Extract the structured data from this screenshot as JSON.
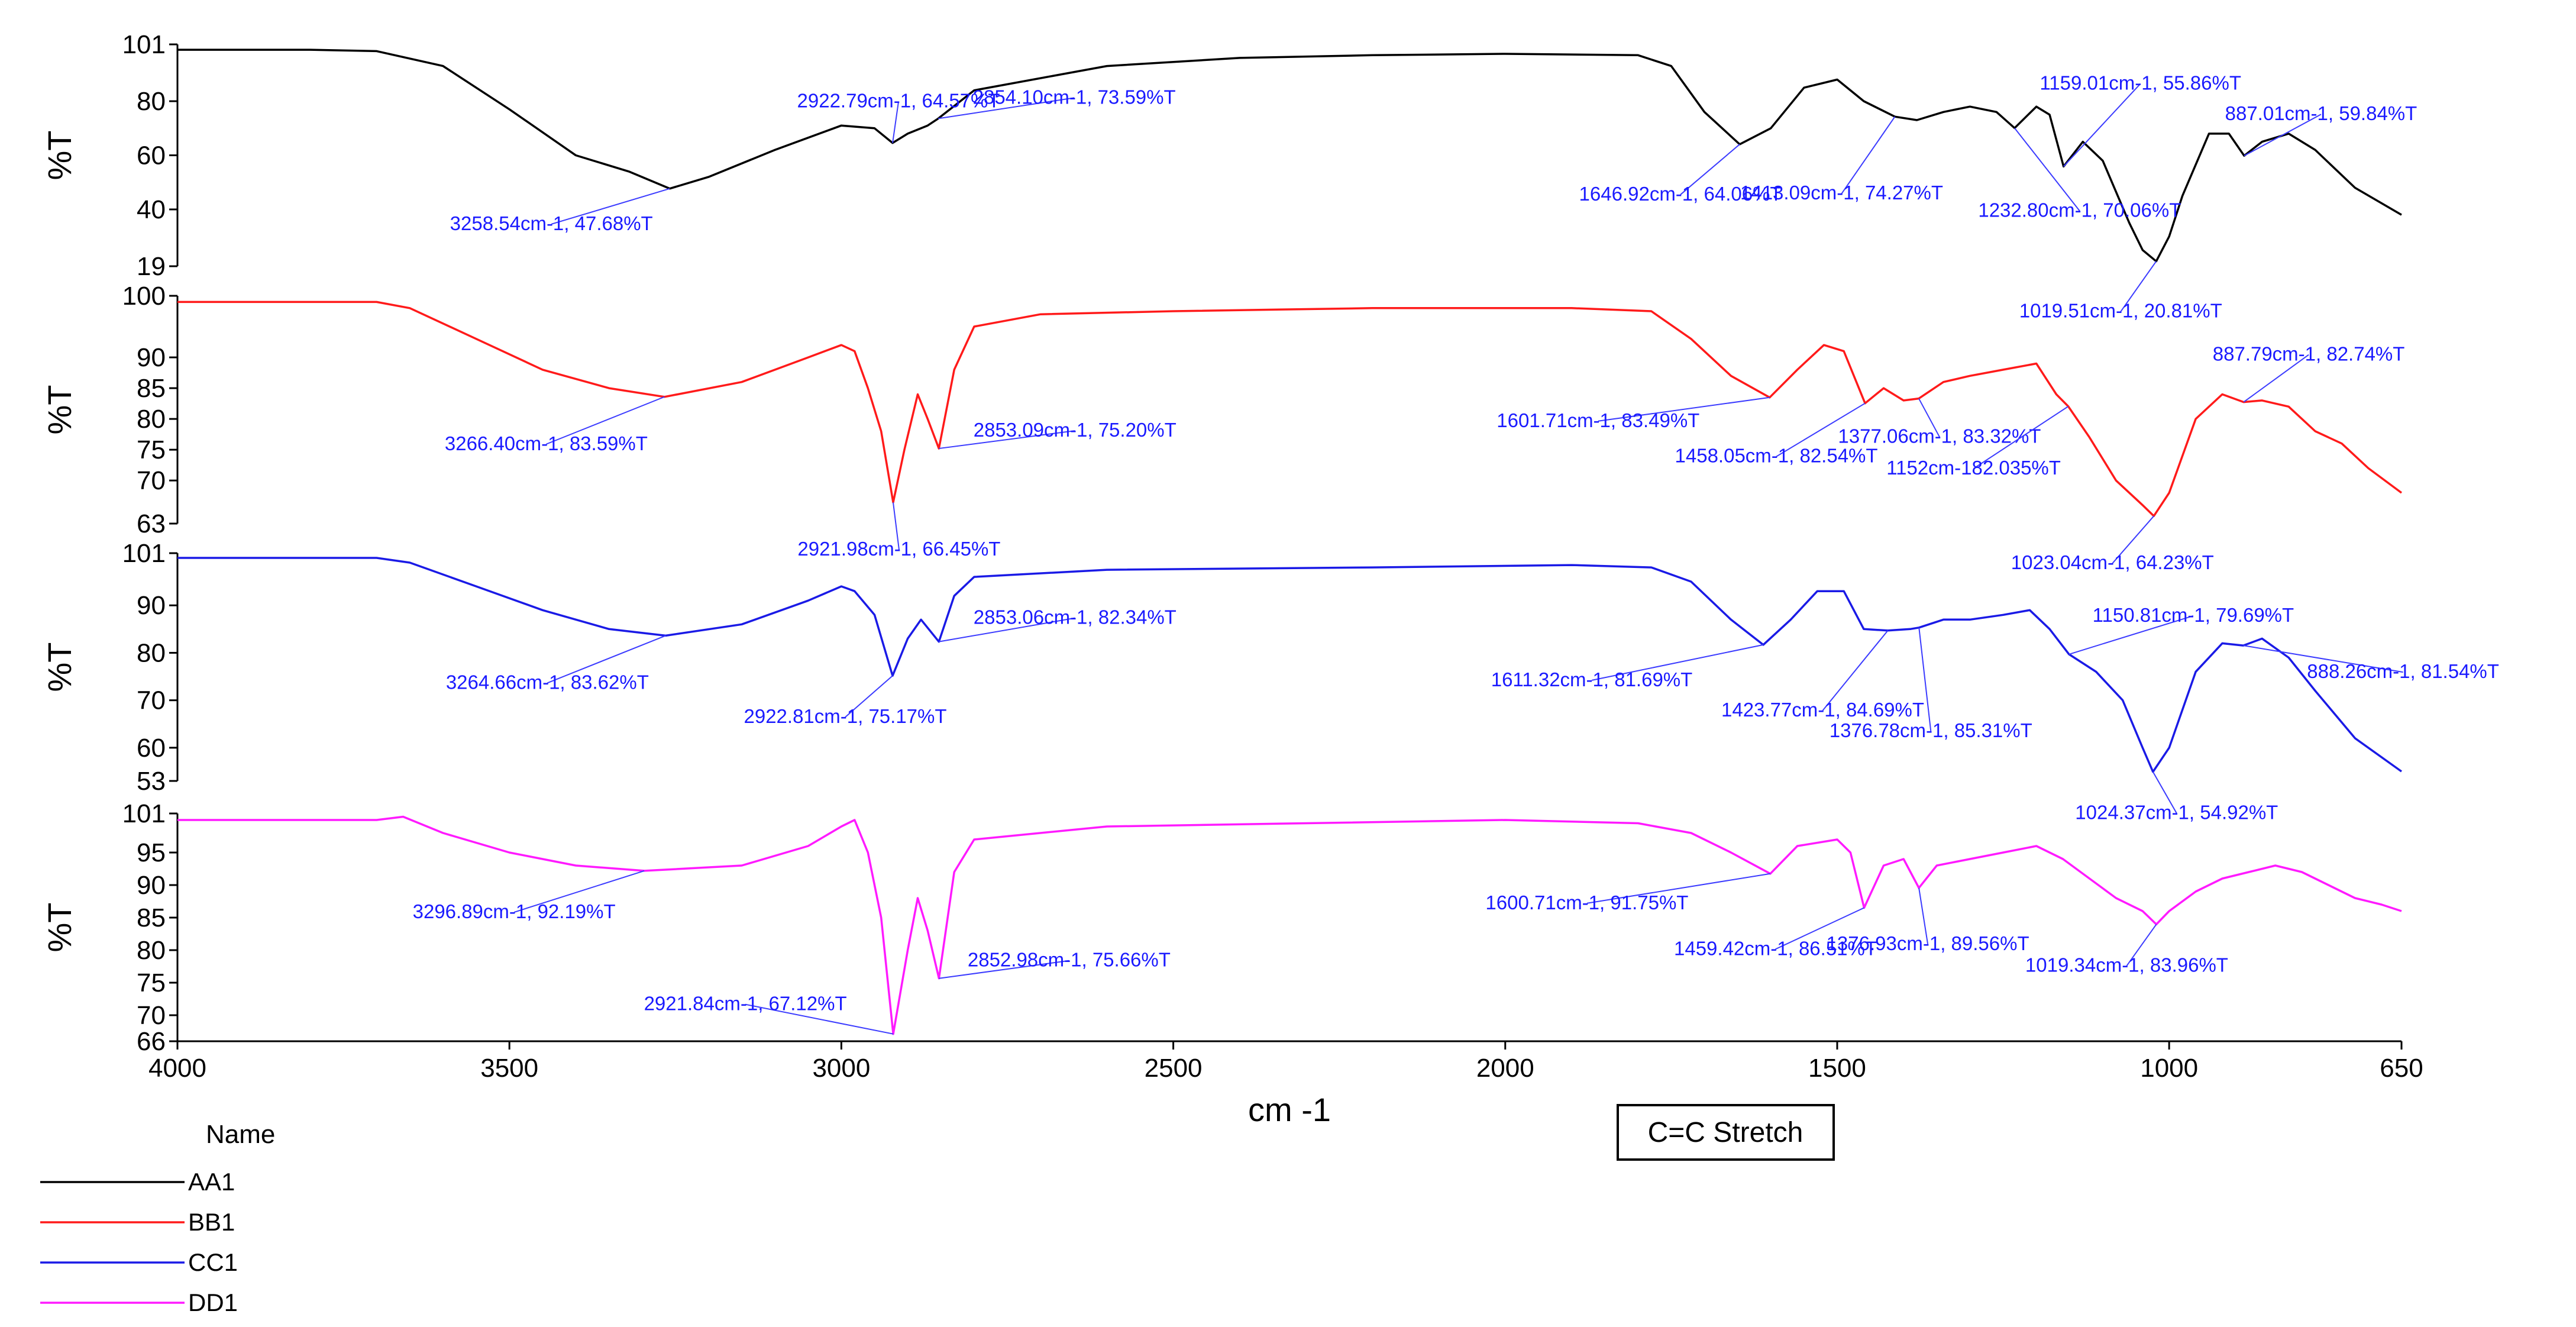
{
  "chart_data": {
    "type": "line",
    "xlabel": "cm -1",
    "x_range": [
      4000,
      650
    ],
    "x_reversed": true,
    "x_ticks": [
      4000,
      3500,
      3000,
      2500,
      2000,
      1500,
      1000,
      650
    ],
    "legend_title": "Name",
    "legend_position": "bottom-left",
    "note": "C=C Stretch",
    "grid": false,
    "panels": [
      {
        "name": "AA1",
        "color": "#000000",
        "ylabel": "%T",
        "ylim": [
          19,
          101
        ],
        "y_ticks": [
          101,
          80,
          60,
          40,
          19
        ],
        "points": [
          [
            4000,
            99
          ],
          [
            3800,
            99
          ],
          [
            3700,
            98.5
          ],
          [
            3600,
            93
          ],
          [
            3500,
            77
          ],
          [
            3400,
            60
          ],
          [
            3320,
            54
          ],
          [
            3258.54,
            47.68
          ],
          [
            3200,
            52
          ],
          [
            3100,
            62
          ],
          [
            3000,
            71
          ],
          [
            2950,
            70
          ],
          [
            2922.79,
            64.57
          ],
          [
            2900,
            68
          ],
          [
            2870,
            71
          ],
          [
            2854.1,
            73.59
          ],
          [
            2800,
            84
          ],
          [
            2600,
            93
          ],
          [
            2400,
            96
          ],
          [
            2200,
            97
          ],
          [
            2000,
            97.5
          ],
          [
            1800,
            97
          ],
          [
            1750,
            93
          ],
          [
            1700,
            76
          ],
          [
            1646.92,
            64.06
          ],
          [
            1600,
            70
          ],
          [
            1550,
            85
          ],
          [
            1500,
            88
          ],
          [
            1460,
            80
          ],
          [
            1413.09,
            74.27
          ],
          [
            1380,
            73
          ],
          [
            1340,
            76
          ],
          [
            1300,
            78
          ],
          [
            1260,
            76
          ],
          [
            1232.8,
            70.06
          ],
          [
            1200,
            78
          ],
          [
            1180,
            75
          ],
          [
            1159.01,
            55.86
          ],
          [
            1130,
            65
          ],
          [
            1100,
            58
          ],
          [
            1060,
            35
          ],
          [
            1040,
            25
          ],
          [
            1019.51,
            20.81
          ],
          [
            1000,
            30
          ],
          [
            980,
            45
          ],
          [
            940,
            68
          ],
          [
            910,
            68
          ],
          [
            887.01,
            59.84
          ],
          [
            860,
            65
          ],
          [
            820,
            68
          ],
          [
            780,
            62
          ],
          [
            720,
            48
          ],
          [
            650,
            38
          ]
        ],
        "annotations": [
          {
            "x": 3258.54,
            "y": 47.68,
            "label": "3258.54cm-1, 47.68%T"
          },
          {
            "x": 2922.79,
            "y": 64.57,
            "label": "2922.79cm-1, 64.57%T"
          },
          {
            "x": 2854.1,
            "y": 73.59,
            "label": "2854.10cm-1, 73.59%T"
          },
          {
            "x": 1646.92,
            "y": 64.06,
            "label": "1646.92cm-1, 64.06%T"
          },
          {
            "x": 1413.09,
            "y": 74.27,
            "label": "1413.09cm-1, 74.27%T"
          },
          {
            "x": 1232.8,
            "y": 70.06,
            "label": "1232.80cm-1, 70.06%T"
          },
          {
            "x": 1159.01,
            "y": 55.86,
            "label": "1159.01cm-1, 55.86%T"
          },
          {
            "x": 1019.51,
            "y": 20.81,
            "label": "1019.51cm-1, 20.81%T"
          },
          {
            "x": 887.01,
            "y": 59.84,
            "label": "887.01cm-1, 59.84%T"
          }
        ]
      },
      {
        "name": "BB1",
        "color": "#ff1a1a",
        "ylabel": "%T",
        "ylim": [
          63,
          100
        ],
        "y_ticks": [
          100,
          90,
          85,
          80,
          75,
          70,
          63
        ],
        "points": [
          [
            4000,
            99
          ],
          [
            3700,
            99
          ],
          [
            3650,
            98
          ],
          [
            3550,
            93
          ],
          [
            3450,
            88
          ],
          [
            3350,
            85
          ],
          [
            3266.4,
            83.59
          ],
          [
            3150,
            86
          ],
          [
            3050,
            90
          ],
          [
            3000,
            92
          ],
          [
            2980,
            91
          ],
          [
            2960,
            85
          ],
          [
            2940,
            78
          ],
          [
            2921.98,
            66.45
          ],
          [
            2905,
            75
          ],
          [
            2885,
            84
          ],
          [
            2870,
            80
          ],
          [
            2853.09,
            75.2
          ],
          [
            2830,
            88
          ],
          [
            2800,
            95
          ],
          [
            2700,
            97
          ],
          [
            2500,
            97.5
          ],
          [
            2200,
            98
          ],
          [
            1900,
            98
          ],
          [
            1780,
            97.5
          ],
          [
            1720,
            93
          ],
          [
            1660,
            87
          ],
          [
            1601.71,
            83.49
          ],
          [
            1560,
            88
          ],
          [
            1520,
            92
          ],
          [
            1490,
            91
          ],
          [
            1458.05,
            82.54
          ],
          [
            1430,
            85
          ],
          [
            1400,
            83
          ],
          [
            1377.06,
            83.32
          ],
          [
            1340,
            86
          ],
          [
            1300,
            87
          ],
          [
            1250,
            88
          ],
          [
            1200,
            89
          ],
          [
            1170,
            84
          ],
          [
            1152,
            82.035
          ],
          [
            1120,
            77
          ],
          [
            1080,
            70
          ],
          [
            1040,
            66
          ],
          [
            1023.04,
            64.23
          ],
          [
            1000,
            68
          ],
          [
            960,
            80
          ],
          [
            920,
            84
          ],
          [
            887.79,
            82.74
          ],
          [
            860,
            83
          ],
          [
            820,
            82
          ],
          [
            780,
            78
          ],
          [
            740,
            76
          ],
          [
            700,
            72
          ],
          [
            650,
            68
          ]
        ],
        "annotations": [
          {
            "x": 3266.4,
            "y": 83.59,
            "label": "3266.40cm-1, 83.59%T"
          },
          {
            "x": 2921.98,
            "y": 66.45,
            "label": "2921.98cm-1, 66.45%T"
          },
          {
            "x": 2853.09,
            "y": 75.2,
            "label": "2853.09cm-1, 75.20%T"
          },
          {
            "x": 1601.71,
            "y": 83.49,
            "label": "1601.71cm-1, 83.49%T"
          },
          {
            "x": 1458.05,
            "y": 82.54,
            "label": "1458.05cm-1, 82.54%T"
          },
          {
            "x": 1377.06,
            "y": 83.32,
            "label": "1377.06cm-1, 83.32%T"
          },
          {
            "x": 1152,
            "y": 82.035,
            "label": "1152cm-182.035%T"
          },
          {
            "x": 1023.04,
            "y": 64.23,
            "label": "1023.04cm-1, 64.23%T"
          },
          {
            "x": 887.79,
            "y": 82.74,
            "label": "887.79cm-1, 82.74%T"
          }
        ]
      },
      {
        "name": "CC1",
        "color": "#1a1ae6",
        "ylabel": "%T",
        "ylim": [
          53,
          101
        ],
        "y_ticks": [
          101,
          90,
          80,
          70,
          60,
          53
        ],
        "points": [
          [
            4000,
            100
          ],
          [
            3700,
            100
          ],
          [
            3650,
            99
          ],
          [
            3550,
            94
          ],
          [
            3450,
            89
          ],
          [
            3350,
            85
          ],
          [
            3264.66,
            83.62
          ],
          [
            3150,
            86
          ],
          [
            3050,
            91
          ],
          [
            3000,
            94
          ],
          [
            2980,
            93
          ],
          [
            2950,
            88
          ],
          [
            2922.81,
            75.17
          ],
          [
            2900,
            83
          ],
          [
            2880,
            87
          ],
          [
            2853.06,
            82.34
          ],
          [
            2830,
            92
          ],
          [
            2800,
            96
          ],
          [
            2600,
            97.5
          ],
          [
            2200,
            98
          ],
          [
            1900,
            98.5
          ],
          [
            1780,
            98
          ],
          [
            1720,
            95
          ],
          [
            1660,
            87
          ],
          [
            1611.32,
            81.69
          ],
          [
            1570,
            87
          ],
          [
            1530,
            93
          ],
          [
            1490,
            93
          ],
          [
            1460,
            85
          ],
          [
            1423.77,
            84.69
          ],
          [
            1390,
            85
          ],
          [
            1376.78,
            85.31
          ],
          [
            1340,
            87
          ],
          [
            1300,
            87
          ],
          [
            1250,
            88
          ],
          [
            1210,
            89
          ],
          [
            1180,
            85
          ],
          [
            1150.81,
            79.69
          ],
          [
            1110,
            76
          ],
          [
            1070,
            70
          ],
          [
            1040,
            60
          ],
          [
            1024.37,
            54.92
          ],
          [
            1000,
            60
          ],
          [
            960,
            76
          ],
          [
            920,
            82
          ],
          [
            888.26,
            81.54
          ],
          [
            860,
            83
          ],
          [
            820,
            79
          ],
          [
            780,
            72
          ],
          [
            720,
            62
          ],
          [
            650,
            55
          ]
        ],
        "annotations": [
          {
            "x": 3264.66,
            "y": 83.62,
            "label": "3264.66cm-1, 83.62%T"
          },
          {
            "x": 2922.81,
            "y": 75.17,
            "label": "2922.81cm-1, 75.17%T"
          },
          {
            "x": 2853.06,
            "y": 82.34,
            "label": "2853.06cm-1, 82.34%T"
          },
          {
            "x": 1611.32,
            "y": 81.69,
            "label": "1611.32cm-1, 81.69%T"
          },
          {
            "x": 1423.77,
            "y": 84.69,
            "label": "1423.77cm-1, 84.69%T"
          },
          {
            "x": 1376.78,
            "y": 85.31,
            "label": "1376.78cm-1, 85.31%T"
          },
          {
            "x": 1150.81,
            "y": 79.69,
            "label": "1150.81cm-1, 79.69%T"
          },
          {
            "x": 1024.37,
            "y": 54.92,
            "label": "1024.37cm-1, 54.92%T"
          },
          {
            "x": 888.26,
            "y": 81.54,
            "label": "888.26cm-1, 81.54%T"
          }
        ]
      },
      {
        "name": "DD1",
        "color": "#ff1aff",
        "ylabel": "%T",
        "ylim": [
          66,
          101
        ],
        "y_ticks": [
          101,
          95,
          90,
          85,
          80,
          75,
          70,
          66
        ],
        "points": [
          [
            4000,
            100
          ],
          [
            3700,
            100
          ],
          [
            3660,
            100.5
          ],
          [
            3600,
            98
          ],
          [
            3500,
            95
          ],
          [
            3400,
            93
          ],
          [
            3296.89,
            92.19
          ],
          [
            3150,
            93
          ],
          [
            3050,
            96
          ],
          [
            3000,
            99
          ],
          [
            2980,
            100
          ],
          [
            2960,
            95
          ],
          [
            2940,
            85
          ],
          [
            2921.84,
            67.12
          ],
          [
            2900,
            80
          ],
          [
            2885,
            88
          ],
          [
            2870,
            83
          ],
          [
            2852.98,
            75.66
          ],
          [
            2830,
            92
          ],
          [
            2800,
            97
          ],
          [
            2600,
            99
          ],
          [
            2300,
            99.5
          ],
          [
            2000,
            100
          ],
          [
            1800,
            99.5
          ],
          [
            1720,
            98
          ],
          [
            1660,
            95
          ],
          [
            1600.71,
            91.75
          ],
          [
            1560,
            96
          ],
          [
            1500,
            97
          ],
          [
            1480,
            95
          ],
          [
            1459.42,
            86.51
          ],
          [
            1430,
            93
          ],
          [
            1400,
            94
          ],
          [
            1376.93,
            89.56
          ],
          [
            1350,
            93
          ],
          [
            1300,
            94
          ],
          [
            1250,
            95
          ],
          [
            1200,
            96
          ],
          [
            1160,
            94
          ],
          [
            1120,
            91
          ],
          [
            1080,
            88
          ],
          [
            1040,
            86
          ],
          [
            1019.34,
            83.96
          ],
          [
            1000,
            86
          ],
          [
            960,
            89
          ],
          [
            920,
            91
          ],
          [
            880,
            92
          ],
          [
            840,
            93
          ],
          [
            800,
            92
          ],
          [
            760,
            90
          ],
          [
            720,
            88
          ],
          [
            680,
            87
          ],
          [
            650,
            86
          ]
        ],
        "annotations": [
          {
            "x": 3296.89,
            "y": 92.19,
            "label": "3296.89cm-1, 92.19%T"
          },
          {
            "x": 2921.84,
            "y": 67.12,
            "label": "2921.84cm-1, 67.12%T"
          },
          {
            "x": 2852.98,
            "y": 75.66,
            "label": "2852.98cm-1, 75.66%T"
          },
          {
            "x": 1600.71,
            "y": 91.75,
            "label": "1600.71cm-1, 91.75%T"
          },
          {
            "x": 1459.42,
            "y": 86.51,
            "label": "1459.42cm-1, 86.51%T"
          },
          {
            "x": 1376.93,
            "y": 89.56,
            "label": "1376.93cm-1, 89.56%T"
          },
          {
            "x": 1019.34,
            "y": 83.96,
            "label": "1019.34cm-1, 83.96%T"
          }
        ]
      }
    ]
  }
}
